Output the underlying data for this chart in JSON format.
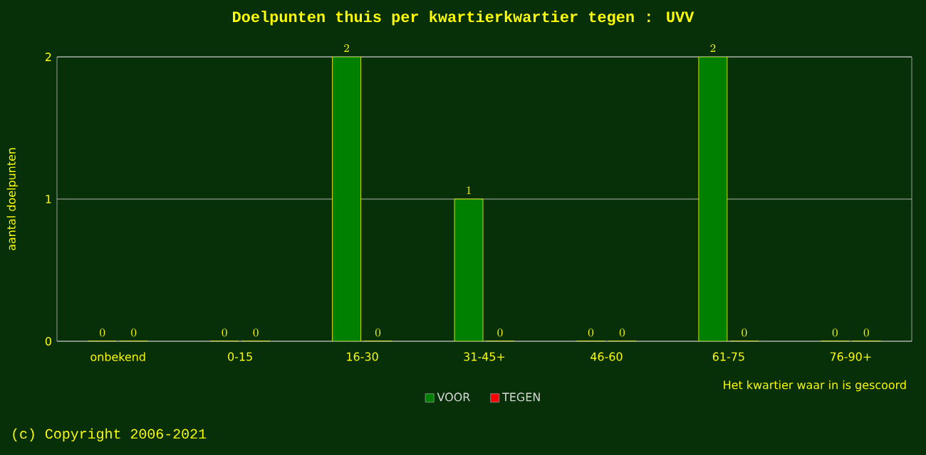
{
  "chart_data": {
    "type": "bar",
    "title": "Doelpunten thuis per kwartierkwartier tegen : UVV",
    "categories": [
      "onbekend",
      "0-15",
      "16-30",
      "31-45+",
      "46-60",
      "61-75",
      "76-90+"
    ],
    "series": [
      {
        "name": "VOOR",
        "color": "#008000",
        "values": [
          0,
          0,
          2,
          1,
          0,
          2,
          0
        ]
      },
      {
        "name": "TEGEN",
        "color": "#ff0000",
        "values": [
          0,
          0,
          0,
          0,
          0,
          0,
          0
        ]
      }
    ],
    "xlabel": "Het kwartier waar in is gescoord",
    "ylabel": "aantal doelpunten",
    "ylim": [
      0,
      2
    ],
    "yticks": [
      0,
      1,
      2
    ],
    "grid": "y",
    "legend": "bottom",
    "data_labels": true,
    "annotations": [
      "(c) Copyright 2006-2021"
    ]
  }
}
